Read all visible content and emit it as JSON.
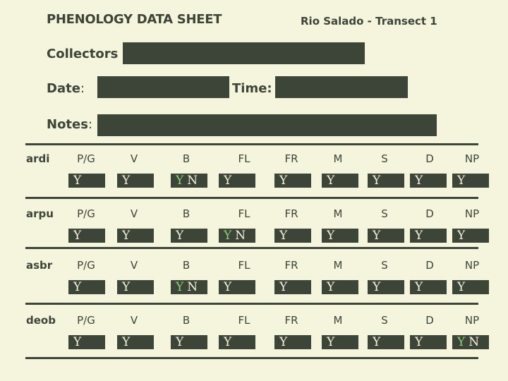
{
  "header": {
    "title": "PHENOLOGY DATA SHEET",
    "site": "Rio Salado  - Transect 1"
  },
  "fields": {
    "collectors_label": "Collectors",
    "date_label": "Date",
    "date_colon": ":",
    "time_label": "Time:",
    "notes_label": "Notes",
    "notes_colon": ":"
  },
  "column_headers": [
    "P/G",
    "V",
    "B",
    "FL",
    "FR",
    "M",
    "S",
    "D",
    "NP"
  ],
  "species": [
    {
      "code": "ardi",
      "cells": [
        "Y",
        "Y",
        "Y N",
        "Y",
        "Y",
        "Y",
        "Y",
        "Y",
        "Y"
      ]
    },
    {
      "code": "arpu",
      "cells": [
        "Y",
        "Y",
        "Y",
        "Y N",
        "Y",
        "Y",
        "Y",
        "Y",
        "Y"
      ]
    },
    {
      "code": "asbr",
      "cells": [
        "Y",
        "Y",
        "Y N",
        "Y",
        "Y",
        "Y",
        "Y",
        "Y",
        "Y"
      ]
    },
    {
      "code": "deob",
      "cells": [
        "Y",
        "Y",
        "Y",
        "Y",
        "Y",
        "Y",
        "Y",
        "Y",
        "Y N"
      ]
    }
  ],
  "colors": {
    "background": "#f5f4dc",
    "ink": "#3d4438",
    "selected_yes": "#8cd07a"
  }
}
